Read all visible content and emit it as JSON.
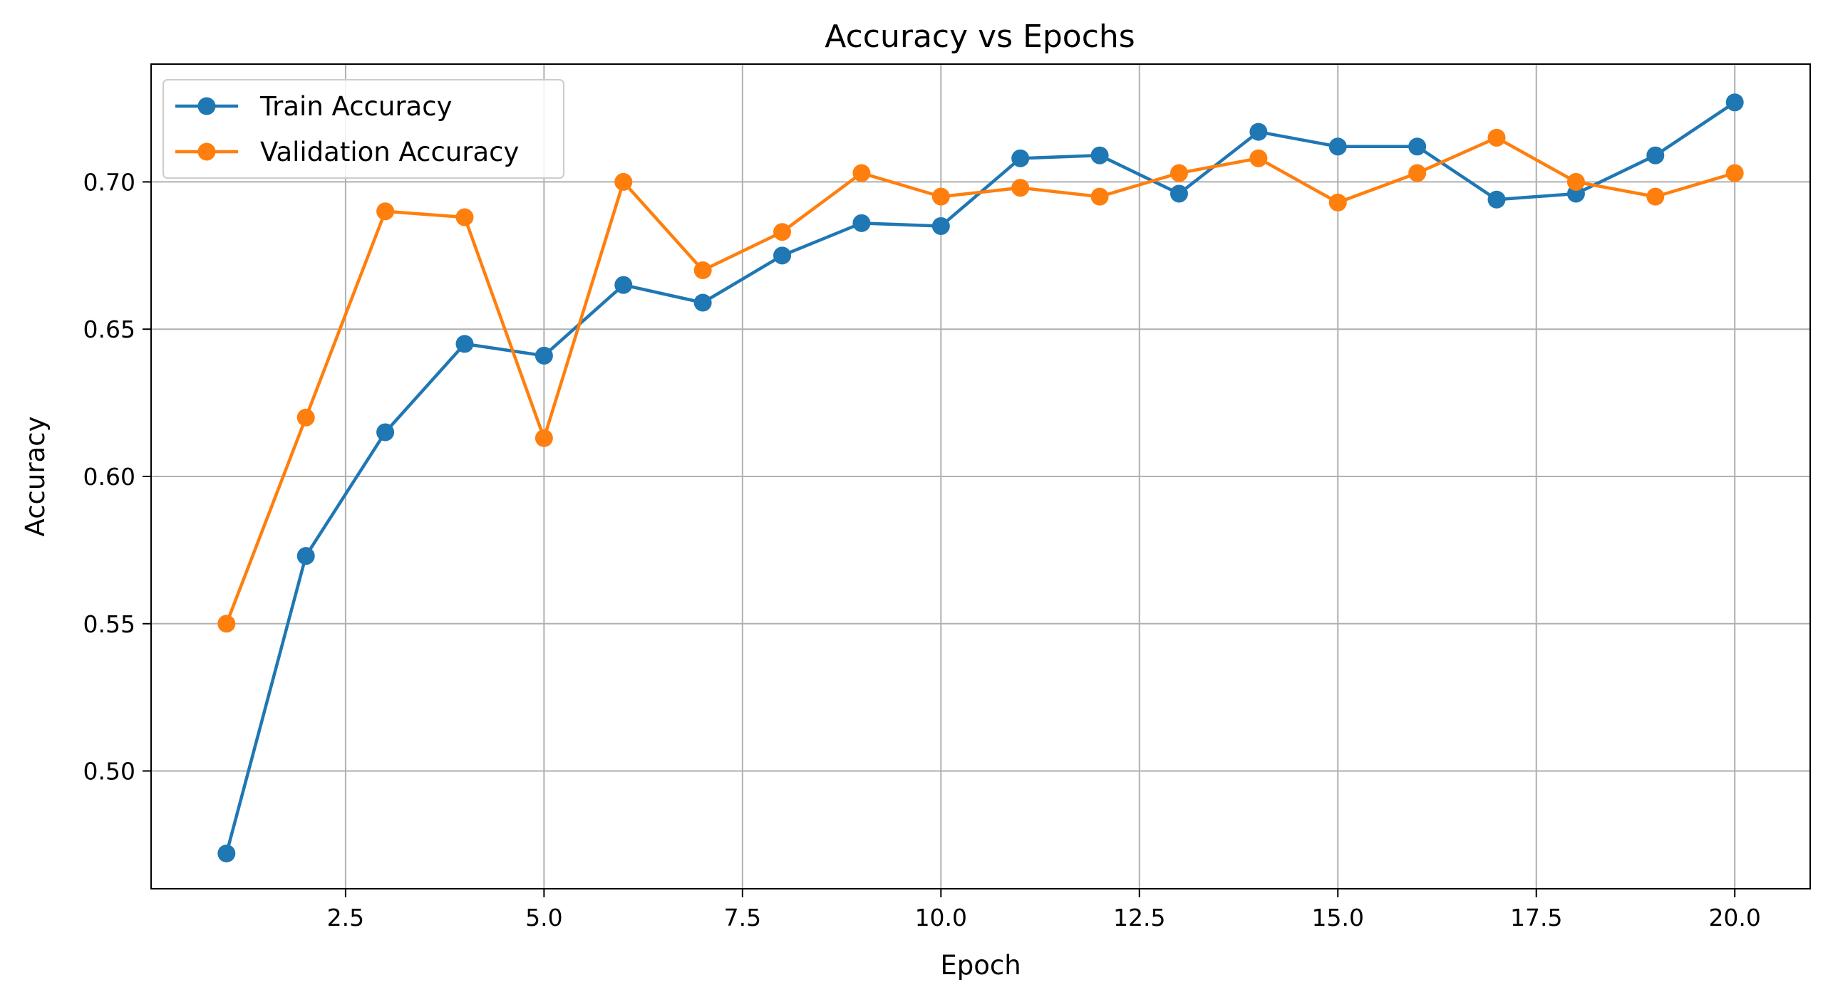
{
  "chart_data": {
    "type": "line",
    "title": "Accuracy vs Epochs",
    "xlabel": "Epoch",
    "ylabel": "Accuracy",
    "xlim": [
      0.05,
      20.95
    ],
    "ylim": [
      0.46,
      0.74
    ],
    "xticks": [
      2.5,
      5.0,
      7.5,
      10.0,
      12.5,
      15.0,
      17.5,
      20.0
    ],
    "xtick_labels": [
      "2.5",
      "5.0",
      "7.5",
      "10.0",
      "12.5",
      "15.0",
      "17.5",
      "20.0"
    ],
    "yticks": [
      0.5,
      0.55,
      0.6,
      0.65,
      0.7
    ],
    "ytick_labels": [
      "0.50",
      "0.55",
      "0.60",
      "0.65",
      "0.70"
    ],
    "grid": true,
    "legend_position": "top-left",
    "x": [
      1,
      2,
      3,
      4,
      5,
      6,
      7,
      8,
      9,
      10,
      11,
      12,
      13,
      14,
      15,
      16,
      17,
      18,
      19,
      20
    ],
    "series": [
      {
        "name": "Train Accuracy",
        "color": "#1f77b4",
        "marker": "circle",
        "values": [
          0.472,
          0.573,
          0.615,
          0.645,
          0.641,
          0.665,
          0.659,
          0.675,
          0.686,
          0.685,
          0.708,
          0.709,
          0.696,
          0.717,
          0.712,
          0.712,
          0.694,
          0.696,
          0.709,
          0.727
        ]
      },
      {
        "name": "Validation Accuracy",
        "color": "#ff7f0e",
        "marker": "circle",
        "values": [
          0.55,
          0.62,
          0.69,
          0.688,
          0.613,
          0.7,
          0.67,
          0.683,
          0.703,
          0.695,
          0.698,
          0.695,
          0.703,
          0.708,
          0.693,
          0.703,
          0.715,
          0.7,
          0.695,
          0.703
        ]
      }
    ]
  }
}
